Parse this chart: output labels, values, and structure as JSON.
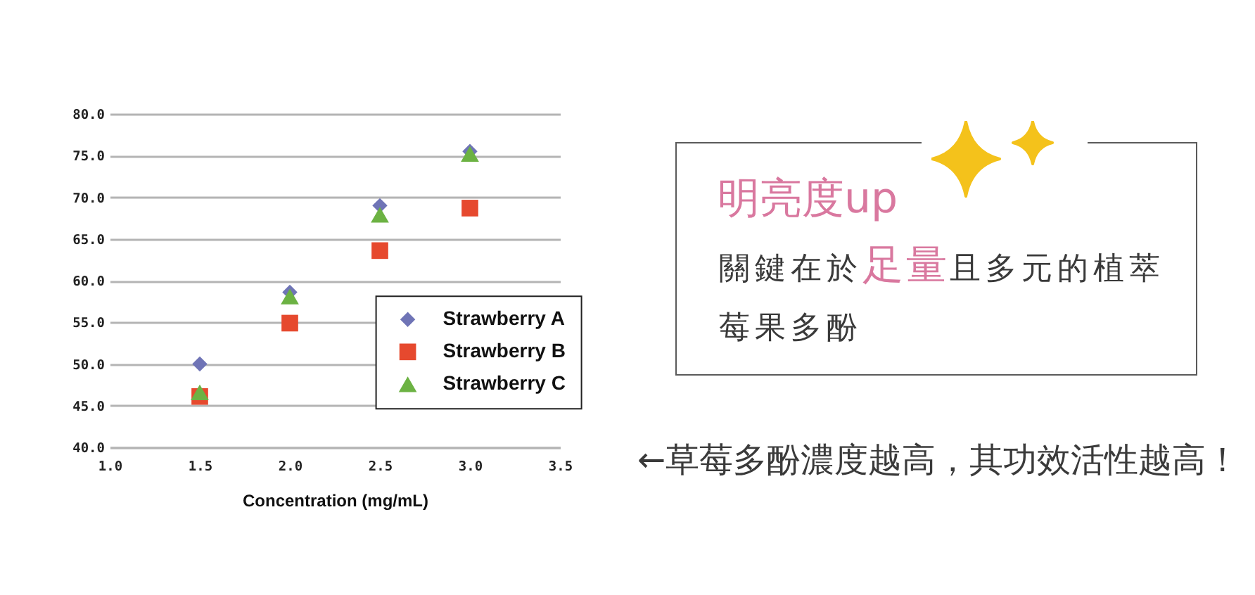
{
  "chart_data": [
    {
      "type": "scatter",
      "xlabel": "Concentration (mg/mL)",
      "x": [
        1.5,
        2.0,
        2.5,
        3.0
      ],
      "series": [
        {
          "name": "Strawberry A",
          "color": "#6f74b6",
          "marker": "diamond",
          "values": [
            50.0,
            58.6,
            69.0,
            75.5
          ]
        },
        {
          "name": "Strawberry B",
          "color": "#e6492e",
          "marker": "square",
          "values": [
            46.1,
            54.9,
            63.6,
            68.7
          ]
        },
        {
          "name": "Strawberry C",
          "color": "#6cb243",
          "marker": "triangle",
          "values": [
            46.6,
            58.1,
            67.9,
            75.2
          ]
        }
      ],
      "xlim": [
        1,
        3.5
      ],
      "xticks": [
        {
          "value": 1,
          "label": "1.0"
        },
        {
          "value": 1.5,
          "label": "1.5"
        },
        {
          "value": 2,
          "label": "2.0"
        },
        {
          "value": 2.5,
          "label": "2.5"
        },
        {
          "value": 3,
          "label": "3.0"
        },
        {
          "value": 3.5,
          "label": "3.5"
        }
      ],
      "ylim": [
        40,
        80
      ],
      "yticks": [
        {
          "value": 40,
          "label": "40.0"
        },
        {
          "value": 45,
          "label": "45.0"
        },
        {
          "value": 50,
          "label": "50.0"
        },
        {
          "value": 55,
          "label": "55.0"
        },
        {
          "value": 60,
          "label": "60.0"
        },
        {
          "value": 65,
          "label": "65.0"
        },
        {
          "value": 70,
          "label": "70.0"
        },
        {
          "value": 75,
          "label": "75.0"
        },
        {
          "value": 80,
          "label": "80.0"
        }
      ],
      "grid": "y",
      "legend": "right",
      "annotations": [
        "←草莓多酚濃度越高，其功效活性越高！"
      ]
    },
    {
      "type": "other",
      "title": "明亮度up",
      "annotations": [
        "關鍵在於",
        "足量",
        "且多元的植萃",
        "莓果多酚"
      ]
    }
  ]
}
